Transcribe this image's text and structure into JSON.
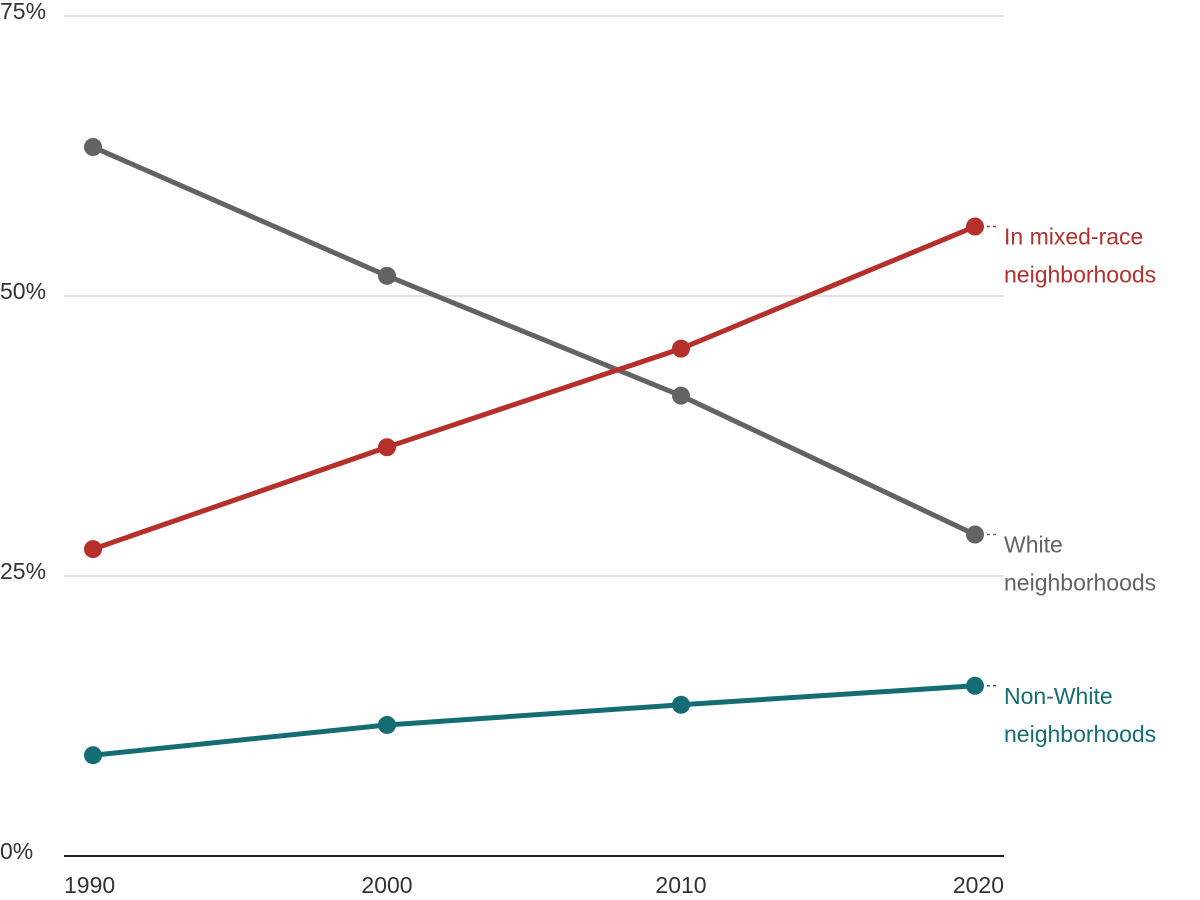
{
  "chart_data": {
    "type": "line",
    "x": [
      1990,
      2000,
      2010,
      2020
    ],
    "x_tick_labels": [
      "1990",
      "2000",
      "2010",
      "2020"
    ],
    "ylim": [
      0,
      75
    ],
    "y_ticks": [
      0,
      25,
      50,
      75
    ],
    "y_tick_labels": [
      "0%",
      "25%",
      "50%",
      "75%"
    ],
    "grid": true,
    "legend": "direct labels at line ends (right)",
    "series": [
      {
        "key": "white",
        "label_lines": [
          "White",
          "neighborhoods"
        ],
        "color": "#636363",
        "values": [
          63.3,
          51.8,
          41.1,
          28.7
        ]
      },
      {
        "key": "mixed",
        "label_lines": [
          "In mixed-race",
          "neighborhoods"
        ],
        "color": "#b5302a",
        "values": [
          27.4,
          36.5,
          45.3,
          56.2
        ]
      },
      {
        "key": "nonwhite",
        "label_lines": [
          "Non-White",
          "neighborhoods"
        ],
        "color": "#156d74",
        "values": [
          9.0,
          11.7,
          13.5,
          15.2
        ]
      }
    ]
  }
}
